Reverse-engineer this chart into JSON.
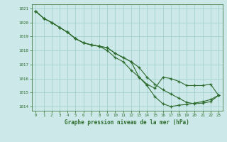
{
  "x": [
    0,
    1,
    2,
    3,
    4,
    5,
    6,
    7,
    8,
    9,
    10,
    11,
    12,
    13,
    14,
    15,
    16,
    17,
    18,
    19,
    20,
    21,
    22,
    23
  ],
  "line1": [
    1020.8,
    1020.3,
    1020.0,
    1019.65,
    1019.3,
    1018.85,
    1018.55,
    1018.4,
    1018.3,
    1018.2,
    1017.8,
    1017.5,
    1017.2,
    1016.1,
    1015.6,
    1015.3,
    1016.1,
    1016.0,
    1015.8,
    1015.5,
    1015.5,
    1015.5,
    1015.6,
    1014.8
  ],
  "line2": [
    1020.8,
    1020.3,
    1020.0,
    1019.65,
    1019.3,
    1018.85,
    1018.55,
    1018.4,
    1018.3,
    1018.2,
    1017.8,
    1017.5,
    1017.2,
    1016.8,
    1016.1,
    1015.6,
    1015.2,
    1014.9,
    1014.6,
    1014.3,
    1014.2,
    1014.25,
    1014.35,
    1014.8
  ],
  "line3": [
    1020.8,
    1020.3,
    1020.0,
    1019.65,
    1019.3,
    1018.85,
    1018.55,
    1018.4,
    1018.3,
    1018.0,
    1017.5,
    1017.2,
    1016.6,
    1016.1,
    1015.5,
    1014.7,
    1014.2,
    1014.0,
    1014.1,
    1014.15,
    1014.25,
    1014.35,
    1014.5,
    1014.8
  ],
  "line_color": "#2d6b2d",
  "bg_color": "#cce8e8",
  "grid_color": "#99cccc",
  "xlabel": "Graphe pression niveau de la mer (hPa)",
  "ylim": [
    1013.7,
    1021.3
  ],
  "xlim": [
    -0.5,
    23.5
  ],
  "yticks": [
    1014,
    1015,
    1016,
    1017,
    1018,
    1019,
    1020,
    1021
  ],
  "xticks": [
    0,
    1,
    2,
    3,
    4,
    5,
    6,
    7,
    8,
    9,
    10,
    11,
    12,
    13,
    14,
    15,
    16,
    17,
    18,
    19,
    20,
    21,
    22,
    23
  ]
}
